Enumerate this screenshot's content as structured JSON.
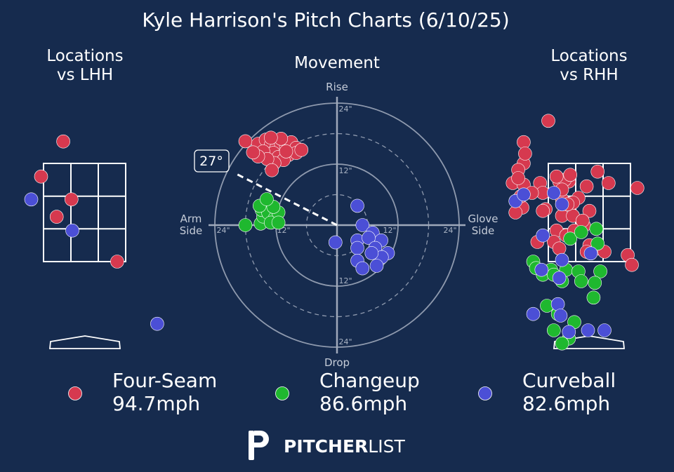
{
  "title": "Kyle Harrison's Pitch Charts (6/10/25)",
  "colors": {
    "background": "#162b4e",
    "four_seam": "#d6394f",
    "changeup": "#1fb82f",
    "curveball": "#4b4fd6"
  },
  "panels": {
    "lhh_title_line1": "Locations",
    "lhh_title_line2": "vs LHH",
    "movement_title": "Movement",
    "rhh_title_line1": "Locations",
    "rhh_title_line2": "vs RHH"
  },
  "movement_axes": {
    "rise": "Rise",
    "drop": "Drop",
    "arm_line1": "Arm",
    "arm_line2": "Side",
    "glove_line1": "Glove",
    "glove_line2": "Side",
    "ring_12": "12\"",
    "ring_24": "24\"",
    "arm_angle_label": "27°"
  },
  "legend": [
    {
      "name": "Four-Seam",
      "velo": "94.7mph",
      "color_key": "four_seam"
    },
    {
      "name": "Changeup",
      "velo": "86.6mph",
      "color_key": "changeup"
    },
    {
      "name": "Curveball",
      "velo": "82.6mph",
      "color_key": "curveball"
    }
  ],
  "brand": {
    "bold": "PITCHER",
    "light": "LIST"
  },
  "chart_data": [
    {
      "type": "scatter",
      "title": "Locations vs LHH",
      "x_units": "zone columns (0-3 = strike zone width)",
      "y_units": "zone rows (0-3 = strike zone height)",
      "series": [
        {
          "name": "Four-Seam",
          "color_key": "four_seam",
          "points": [
            [
              0.72,
              -0.67
            ],
            [
              -0.09,
              0.4
            ],
            [
              0.48,
              1.63
            ],
            [
              1.02,
              1.1
            ],
            [
              2.69,
              3.0
            ]
          ]
        },
        {
          "name": "Curveball",
          "color_key": "curveball",
          "points": [
            [
              -0.45,
              1.1
            ],
            [
              1.05,
              2.05
            ],
            [
              4.15,
              4.9
            ]
          ]
        }
      ]
    },
    {
      "type": "scatter",
      "title": "Movement",
      "x_units": "horizontal break (in), negative = arm side",
      "y_units": "induced vertical break (in)",
      "rings": [
        6,
        12,
        18,
        24
      ],
      "arm_angle_deg": 27,
      "series": [
        {
          "name": "Four-Seam",
          "color_key": "four_seam",
          "points": [
            [
              -18,
              16.5
            ],
            [
              -15.5,
              16
            ],
            [
              -14,
              16.8
            ],
            [
              -13,
              15.8
            ],
            [
              -12,
              15
            ],
            [
              -11,
              16
            ],
            [
              -10,
              15.5
            ],
            [
              -9,
              16.3
            ],
            [
              -8,
              15.2
            ],
            [
              -12.5,
              14.2
            ],
            [
              -14.5,
              14.5
            ],
            [
              -11.5,
              13.4
            ],
            [
              -9.5,
              13.8
            ],
            [
              -8,
              14.2
            ],
            [
              -10.5,
              12.8
            ],
            [
              -12.3,
              12.2
            ],
            [
              -13.7,
              13
            ],
            [
              -15.5,
              13.5
            ],
            [
              -16.5,
              14.3
            ],
            [
              -10,
              14.5
            ],
            [
              -11,
              17
            ],
            [
              -13,
              17.2
            ],
            [
              -7,
              14.8
            ],
            [
              -12.8,
              10.8
            ]
          ]
        },
        {
          "name": "Changeup",
          "color_key": "changeup",
          "points": [
            [
              -18,
              0
            ],
            [
              -15,
              0.3
            ],
            [
              -14.5,
              1.7
            ],
            [
              -14.8,
              3
            ],
            [
              -14,
              4.2
            ],
            [
              -13.5,
              2.4
            ],
            [
              -12.2,
              1.4
            ],
            [
              -13,
              0.5
            ],
            [
              -11.5,
              2.5
            ],
            [
              -12.5,
              3.6
            ],
            [
              -15.2,
              3.8
            ],
            [
              -13.8,
              5.1
            ],
            [
              -11.5,
              0.5
            ]
          ]
        },
        {
          "name": "Curveball",
          "color_key": "curveball",
          "points": [
            [
              -0.3,
              -3.4
            ],
            [
              4,
              3.8
            ],
            [
              5,
              0
            ],
            [
              7,
              -1.5
            ],
            [
              8.7,
              -3
            ],
            [
              4,
              -3
            ],
            [
              6.2,
              -2.5
            ],
            [
              4,
              -4.5
            ],
            [
              7.5,
              -4.5
            ],
            [
              10,
              -5.5
            ],
            [
              8.8,
              -6.3
            ],
            [
              6.8,
              -5.5
            ],
            [
              4,
              -7
            ],
            [
              5,
              -8.5
            ],
            [
              7.8,
              -8
            ]
          ]
        }
      ]
    },
    {
      "type": "scatter",
      "title": "Locations vs RHH",
      "x_units": "zone columns (0-3 = strike zone width)",
      "y_units": "zone rows (0-3 = strike zone height)",
      "series": [
        {
          "name": "Four-Seam",
          "color_key": "four_seam",
          "points": [
            [
              0,
              -1.3
            ],
            [
              -0.9,
              -0.65
            ],
            [
              -0.9,
              0
            ],
            [
              -1.3,
              0.6
            ],
            [
              -0.9,
              0.65
            ],
            [
              -1.1,
              1.1
            ],
            [
              -0.95,
              1.35
            ],
            [
              -1.1,
              0.2
            ],
            [
              -0.3,
              0.6
            ],
            [
              -0.2,
              0.9
            ],
            [
              -0.1,
              1.4
            ],
            [
              -0.2,
              1.45
            ],
            [
              0.4,
              0.55
            ],
            [
              0.75,
              0.55
            ],
            [
              0.5,
              1.1
            ],
            [
              1.1,
              1.05
            ],
            [
              1.4,
              0.7
            ],
            [
              1.5,
              1.45
            ],
            [
              0.9,
              1.2
            ],
            [
              0.6,
              0.5
            ],
            [
              0.3,
              0.4
            ],
            [
              2.2,
              0.6
            ],
            [
              1.8,
              0.25
            ],
            [
              0.5,
              1.6
            ],
            [
              0.9,
              1.6
            ],
            [
              0.3,
              2.05
            ],
            [
              1.5,
              2.5
            ],
            [
              1.4,
              2.7
            ],
            [
              1.8,
              2.6
            ],
            [
              3.25,
              0.75
            ],
            [
              0.2,
              2.4
            ],
            [
              0.4,
              2.6
            ],
            [
              1.3,
              1.9
            ],
            [
              2.05,
              2.7
            ],
            [
              0.65,
              2.2
            ],
            [
              0.95,
              2.05
            ],
            [
              2.9,
              2.8
            ],
            [
              3.05,
              3.1
            ],
            [
              -0.4,
              2.4
            ],
            [
              -1.0,
              1.0
            ],
            [
              -0.6,
              0.9
            ],
            [
              -1.1,
              0.45
            ],
            [
              -1.2,
              1.5
            ],
            [
              0.7,
              1.25
            ],
            [
              1.25,
              1.75
            ],
            [
              0.5,
              0.8
            ],
            [
              -0.85,
              -0.3
            ],
            [
              0.8,
              0.35
            ]
          ]
        },
        {
          "name": "Changeup",
          "color_key": "changeup",
          "points": [
            [
              -0.55,
              3.0
            ],
            [
              -0.2,
              3.4
            ],
            [
              0.1,
              3.25
            ],
            [
              0.2,
              3.4
            ],
            [
              0.5,
              3.6
            ],
            [
              0.8,
              2.3
            ],
            [
              0.65,
              3.25
            ],
            [
              1.2,
              2.1
            ],
            [
              1.1,
              3.3
            ],
            [
              1.9,
              3.3
            ],
            [
              1.2,
              3.6
            ],
            [
              1.7,
              3.65
            ],
            [
              -0.05,
              4.35
            ],
            [
              0.35,
              4.6
            ],
            [
              0.95,
              4.85
            ],
            [
              1.65,
              4.1
            ],
            [
              1.75,
              2.0
            ],
            [
              0.75,
              5.35
            ],
            [
              0.2,
              5.1
            ],
            [
              0.5,
              5.5
            ],
            [
              -0.45,
              3.2
            ],
            [
              1.8,
              2.45
            ]
          ]
        },
        {
          "name": "Curveball",
          "color_key": "curveball",
          "points": [
            [
              -1.2,
              1.15
            ],
            [
              -0.9,
              0.95
            ],
            [
              0.2,
              0.9
            ],
            [
              0.5,
              1.25
            ],
            [
              -0.2,
              2.2
            ],
            [
              0.4,
              3.5
            ],
            [
              1.55,
              2.75
            ],
            [
              -0.25,
              3.25
            ],
            [
              0.35,
              4.3
            ],
            [
              -0.55,
              4.6
            ],
            [
              0.45,
              4.65
            ],
            [
              0.75,
              5.15
            ],
            [
              1.45,
              5.1
            ],
            [
              2.05,
              5.1
            ],
            [
              0.5,
              2.95
            ]
          ]
        }
      ]
    }
  ]
}
